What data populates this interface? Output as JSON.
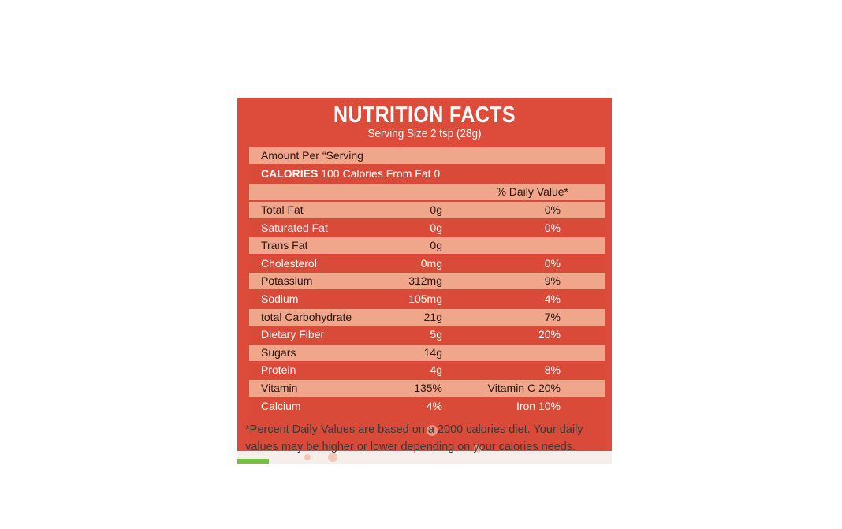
{
  "header": {
    "title": "NUTRITION FACTS",
    "serving": "Serving Size 2 tsp (28g)"
  },
  "amount_per_serving": "Amount Per “Serving",
  "calories_line": {
    "label": "CALORIES",
    "rest": " 100 Calories From Fat 0"
  },
  "daily_value_header": "% Daily Value*",
  "nutrients": [
    {
      "name": "Total Fat",
      "amount": "0g",
      "dv": "0%"
    },
    {
      "name": "Saturated Fat",
      "amount": "0g",
      "dv": "0%"
    },
    {
      "name": "Trans Fat",
      "amount": "0g",
      "dv": ""
    },
    {
      "name": "Cholesterol",
      "amount": "0mg",
      "dv": "0%"
    },
    {
      "name": "Potassium",
      "amount": "312mg",
      "dv": "9%"
    },
    {
      "name": "Sodium",
      "amount": "105mg",
      "dv": "4%"
    },
    {
      "name": "total Carbohydrate",
      "amount": "21g",
      "dv": "7%"
    },
    {
      "name": "Dietary Fiber",
      "amount": "5g",
      "dv": "20%"
    },
    {
      "name": "Sugars",
      "amount": "14g",
      "dv": ""
    },
    {
      "name": "Protein",
      "amount": "4g",
      "dv": "8%"
    },
    {
      "name": "Vitamin",
      "amount": "135%",
      "dv": "Vitamin C 20%"
    },
    {
      "name": "Calcium",
      "amount": "4%",
      "dv": "Iron 10%"
    }
  ],
  "footnote": "*Percent Daily Values are based on a 2000 calories diet. Your daily values may be higher or lower depending on your calories needs.",
  "colors": {
    "header_red": "#dd4b3a",
    "row_salmon": "#f0a68a",
    "row_red": "#d94a38",
    "background": "#ffffff"
  }
}
